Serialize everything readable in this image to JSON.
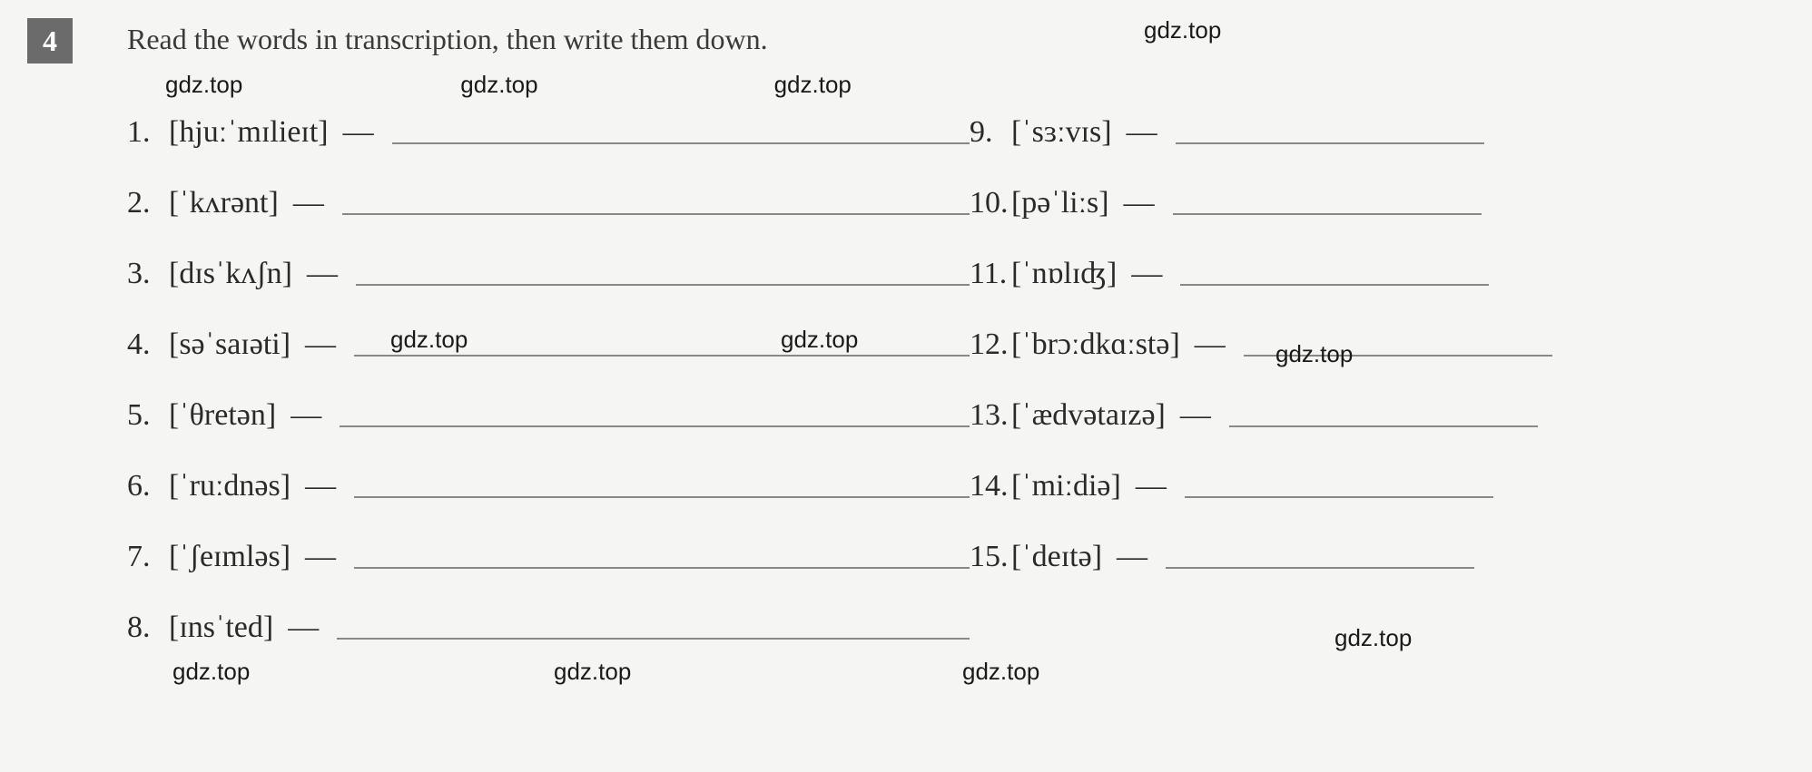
{
  "question_number": "4",
  "instruction": "Read the words in transcription, then write them down.",
  "watermark": "gdz.top",
  "left_items": [
    {
      "num": "1.",
      "text": "[hjuːˈmɪlieɪt]"
    },
    {
      "num": "2.",
      "text": "[ˈkʌrənt]"
    },
    {
      "num": "3.",
      "text": "[dɪsˈkʌʃn]"
    },
    {
      "num": "4.",
      "text": "[səˈsaɪəti]"
    },
    {
      "num": "5.",
      "text": "[ˈθretən]"
    },
    {
      "num": "6.",
      "text": "[ˈruːdnəs]"
    },
    {
      "num": "7.",
      "text": "[ˈʃeɪmləs]"
    },
    {
      "num": "8.",
      "text": "[ɪnsˈted]"
    }
  ],
  "right_items": [
    {
      "num": "9.",
      "text": "[ˈsɜːvɪs]"
    },
    {
      "num": "10.",
      "text": "[pəˈliːs]"
    },
    {
      "num": "11.",
      "text": "[ˈnɒlɪʤ]"
    },
    {
      "num": "12.",
      "text": "[ˈbrɔːdkɑːstə]"
    },
    {
      "num": "13.",
      "text": "[ˈædvətaɪzə]"
    },
    {
      "num": "14.",
      "text": "[ˈmiːdiə]"
    },
    {
      "num": "15.",
      "text": "[ˈdeɪtə]"
    }
  ],
  "colors": {
    "background": "#f5f5f3",
    "text": "#2a2a2a",
    "number_bg": "#6b6b6b",
    "number_fg": "#ffffff",
    "line": "#888888"
  },
  "fontsize": {
    "instruction": 32,
    "item": 34,
    "watermark": 26,
    "qnum": 32
  }
}
